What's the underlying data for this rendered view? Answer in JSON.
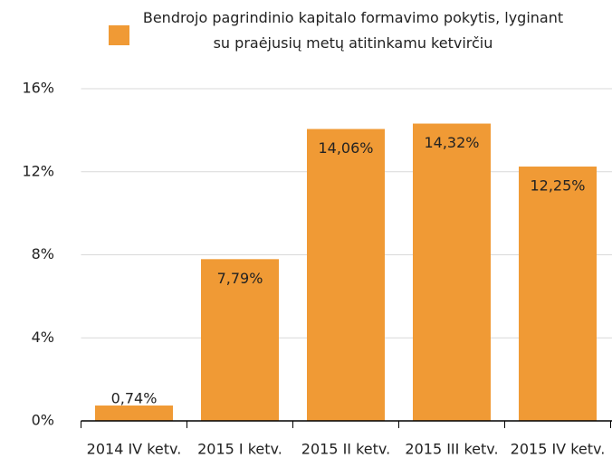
{
  "chart_data": {
    "type": "bar",
    "categories": [
      "2014 IV ketv.",
      "2015 I ketv.",
      "2015 II ketv.",
      "2015 III ketv.",
      "2015 IV ketv."
    ],
    "series": [
      {
        "name": "Bendrojo pagrindinio kapitalo formavimo pokytis, lyginant su praėjusių metų atitinkamu ketvirčiu",
        "color": "#f09a35",
        "values": [
          0.74,
          7.79,
          14.06,
          14.32,
          12.25
        ],
        "value_labels": [
          "0,74%",
          "7,79%",
          "14,06%",
          "14,32%",
          "12,25%"
        ]
      }
    ],
    "ylim": [
      0,
      16
    ],
    "yticks": [
      {
        "value": 0,
        "label": "0%"
      },
      {
        "value": 4,
        "label": "4%"
      },
      {
        "value": 8,
        "label": "8%"
      },
      {
        "value": 12,
        "label": "12%"
      },
      {
        "value": 16,
        "label": "16%"
      }
    ],
    "grid": true,
    "legend": "top"
  }
}
